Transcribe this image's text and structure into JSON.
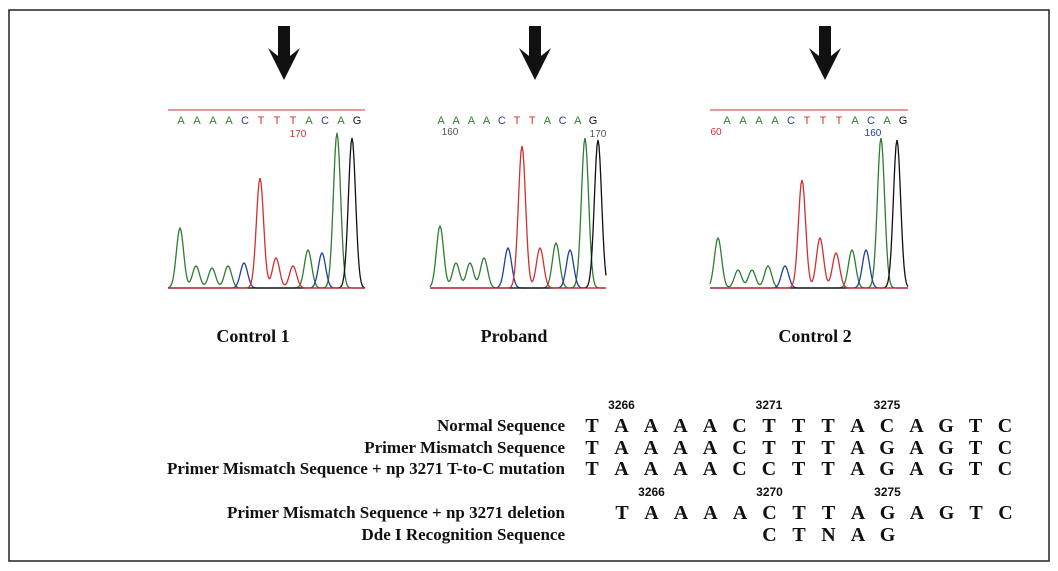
{
  "chromatograms": [
    {
      "label": "Control 1",
      "bases": [
        "A",
        "A",
        "A",
        "A",
        "C",
        "T",
        "T",
        "T",
        "A",
        "C",
        "A",
        "G"
      ],
      "position_labels": [
        "170"
      ]
    },
    {
      "label": "Proband",
      "bases": [
        "A",
        "A",
        "A",
        "A",
        "C",
        "T",
        "T",
        "A",
        "C",
        "A",
        "G"
      ],
      "position_labels": [
        "160",
        "170"
      ]
    },
    {
      "label": "Control 2",
      "bases": [
        "A",
        "A",
        "A",
        "A",
        "C",
        "T",
        "T",
        "T",
        "A",
        "C",
        "A",
        "G"
      ],
      "position_labels": [
        "60",
        "160"
      ]
    }
  ],
  "sequences": [
    {
      "label": "Normal Sequence",
      "positions": [
        "3266",
        "3271",
        "3275"
      ],
      "letters": [
        "T",
        "A",
        "A",
        "A",
        "A",
        "C",
        "T",
        "T",
        "T",
        "A",
        "C",
        "A",
        "G",
        "T",
        "C"
      ]
    },
    {
      "label": "Primer Mismatch Sequence",
      "letters": [
        "T",
        "A",
        "A",
        "A",
        "A",
        "C",
        "T",
        "T",
        "T",
        "A",
        "G",
        "A",
        "G",
        "T",
        "C"
      ]
    },
    {
      "label": "Primer Mismatch Sequence + np 3271 T-to-C mutation",
      "letters": [
        "T",
        "A",
        "A",
        "A",
        "A",
        "C",
        "C",
        "T",
        "T",
        "A",
        "G",
        "A",
        "G",
        "T",
        "C"
      ]
    },
    {
      "label": "Primer Mismatch Sequence + np 3271 deletion",
      "positions": [
        "3266",
        "3270",
        "3275"
      ],
      "letters": [
        "T",
        "A",
        "A",
        "A",
        "A",
        "C",
        "T",
        "T",
        "A",
        "G",
        "A",
        "G",
        "T",
        "C"
      ]
    },
    {
      "label": "Dde I Recognition Sequence",
      "letters": [
        "C",
        "T",
        "N",
        "A",
        "G"
      ]
    }
  ]
}
